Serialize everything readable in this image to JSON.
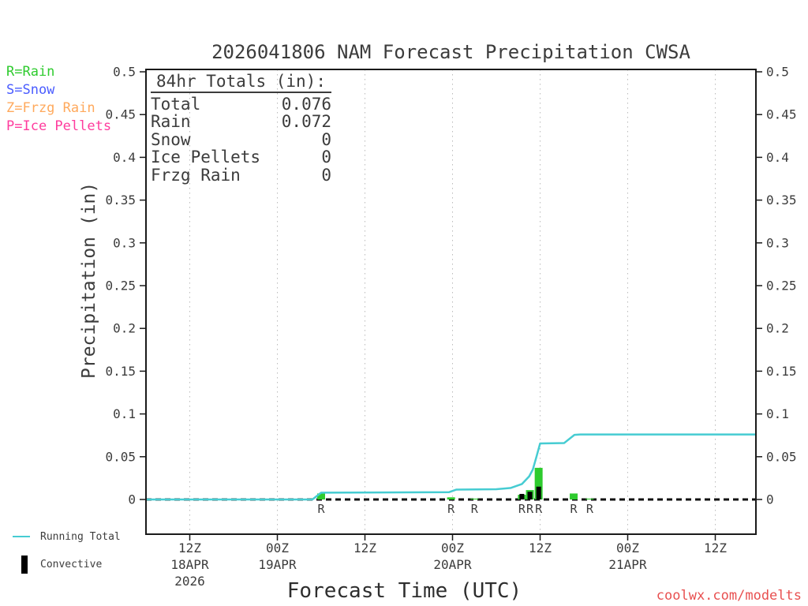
{
  "header": {
    "title": "2026041806 NAM Forecast Precipitation CWSA"
  },
  "footer": {
    "watermark": "coolwx.com/modelts",
    "watermark_color": "#e85050"
  },
  "type_legend": {
    "items": [
      {
        "label": "R=Rain",
        "color": "#2ecb2e"
      },
      {
        "label": "S=Snow",
        "color": "#4a5cff"
      },
      {
        "label": "Z=Frzg Rain",
        "color": "#ffa95c"
      },
      {
        "label": "P=Ice Pellets",
        "color": "#ff3c9e"
      }
    ]
  },
  "legend": {
    "running_total": "Running Total",
    "convective": "Convective"
  },
  "totals": {
    "header": "84hr Totals (in):",
    "rows": [
      {
        "label": "Total",
        "value": "0.076"
      },
      {
        "label": "Rain",
        "value": "0.072"
      },
      {
        "label": "Snow",
        "value": "0"
      },
      {
        "label": "Ice Pellets",
        "value": "0"
      },
      {
        "label": "Frzg Rain",
        "value": "0"
      }
    ]
  },
  "chart_data": {
    "type": "bar",
    "title": "2026041806 NAM Forecast Precipitation CWSA",
    "xlabel": "Forecast Time (UTC)",
    "ylabel": "Precipitation (in)",
    "ylim": [
      0,
      0.5
    ],
    "grid": "vertical-dotted",
    "legend_position": "bottom-left",
    "y_ticks": [
      {
        "value": 0.5,
        "label": "0.5"
      },
      {
        "value": 0.45,
        "label": "0.45"
      },
      {
        "value": 0.4,
        "label": "0.4"
      },
      {
        "value": 0.35,
        "label": "0.35"
      },
      {
        "value": 0.3,
        "label": "0.3"
      },
      {
        "value": 0.25,
        "label": "0.25"
      },
      {
        "value": 0.2,
        "label": "0.2"
      },
      {
        "value": 0.15,
        "label": "0.15"
      },
      {
        "value": 0.1,
        "label": "0.1"
      },
      {
        "value": 0.05,
        "label": "0.05"
      },
      {
        "value": 0,
        "label": "0"
      }
    ],
    "x_ticks": [
      {
        "hour": 6,
        "label": "12Z",
        "date": "18APR",
        "year": "2026"
      },
      {
        "hour": 18,
        "label": "00Z",
        "date": "19APR"
      },
      {
        "hour": 30,
        "label": "12Z"
      },
      {
        "hour": 42,
        "label": "00Z",
        "date": "20APR"
      },
      {
        "hour": 54,
        "label": "12Z"
      },
      {
        "hour": 66,
        "label": "00Z",
        "date": "21APR"
      },
      {
        "hour": 78,
        "label": "12Z"
      }
    ],
    "hours_span": 84,
    "bars": [
      {
        "hour": 24.0,
        "rain": 0.007,
        "convective": 0,
        "marker": "R"
      },
      {
        "hour": 41.8,
        "rain": 0.0025,
        "convective": 0,
        "marker": "R"
      },
      {
        "hour": 45.0,
        "rain": 0.001,
        "convective": 0,
        "marker": "R"
      },
      {
        "hour": 51.5,
        "rain": 0.0055,
        "convective": 0.0065,
        "marker": "R"
      },
      {
        "hour": 52.6,
        "rain": 0.011,
        "convective": 0.009,
        "marker": "R"
      },
      {
        "hour": 53.8,
        "rain": 0.037,
        "convective": 0.015,
        "marker": "R"
      },
      {
        "hour": 58.6,
        "rain": 0.007,
        "convective": 0,
        "marker": "R"
      },
      {
        "hour": 60.8,
        "rain": 0.001,
        "convective": 0,
        "marker": "R"
      }
    ],
    "running_total": {
      "x_hours": [
        0,
        22.8,
        24,
        41.5,
        42.5,
        48,
        50,
        51.5,
        52.5,
        53,
        53.5,
        54,
        57.3,
        58.7,
        59.5,
        83.6
      ],
      "values": [
        0,
        0,
        0.008,
        0.0085,
        0.0115,
        0.012,
        0.0135,
        0.018,
        0.027,
        0.035,
        0.05,
        0.0655,
        0.066,
        0.0755,
        0.076,
        0.076
      ]
    },
    "colors": {
      "rain": "#2ecb2e",
      "convective": "#000000",
      "running_total": "#46ccd2",
      "grid": "#bbbbbb",
      "axis": "#1a1a1a"
    }
  }
}
